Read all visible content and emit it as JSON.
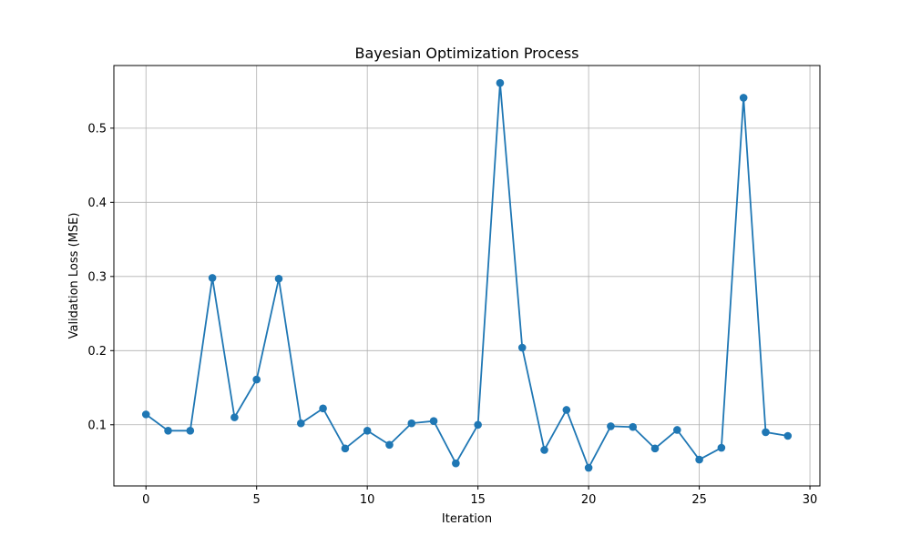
{
  "chart_data": {
    "type": "line",
    "title": "Bayesian Optimization Process",
    "xlabel": "Iteration",
    "ylabel": "Validation Loss (MSE)",
    "xlim": [
      -1.45,
      30.45
    ],
    "ylim": [
      0.0175,
      0.5845
    ],
    "xticks": [
      0,
      5,
      10,
      15,
      20,
      25,
      30
    ],
    "yticks": [
      0.1,
      0.2,
      0.3,
      0.4,
      0.5
    ],
    "xtick_labels": [
      "0",
      "5",
      "10",
      "15",
      "20",
      "25",
      "30"
    ],
    "ytick_labels": [
      "0.1",
      "0.2",
      "0.3",
      "0.4",
      "0.5"
    ],
    "grid": true,
    "legend": "none",
    "color": "#1f77b4",
    "marker": "circle",
    "x": [
      0,
      1,
      2,
      3,
      4,
      5,
      6,
      7,
      8,
      9,
      10,
      11,
      12,
      13,
      14,
      15,
      16,
      17,
      18,
      19,
      20,
      21,
      22,
      23,
      24,
      25,
      26,
      27,
      28,
      29
    ],
    "values": [
      0.114,
      0.092,
      0.092,
      0.298,
      0.11,
      0.161,
      0.297,
      0.102,
      0.122,
      0.068,
      0.092,
      0.073,
      0.102,
      0.105,
      0.048,
      0.1,
      0.561,
      0.204,
      0.066,
      0.12,
      0.042,
      0.098,
      0.097,
      0.068,
      0.093,
      0.053,
      0.069,
      0.541,
      0.09,
      0.085
    ]
  }
}
